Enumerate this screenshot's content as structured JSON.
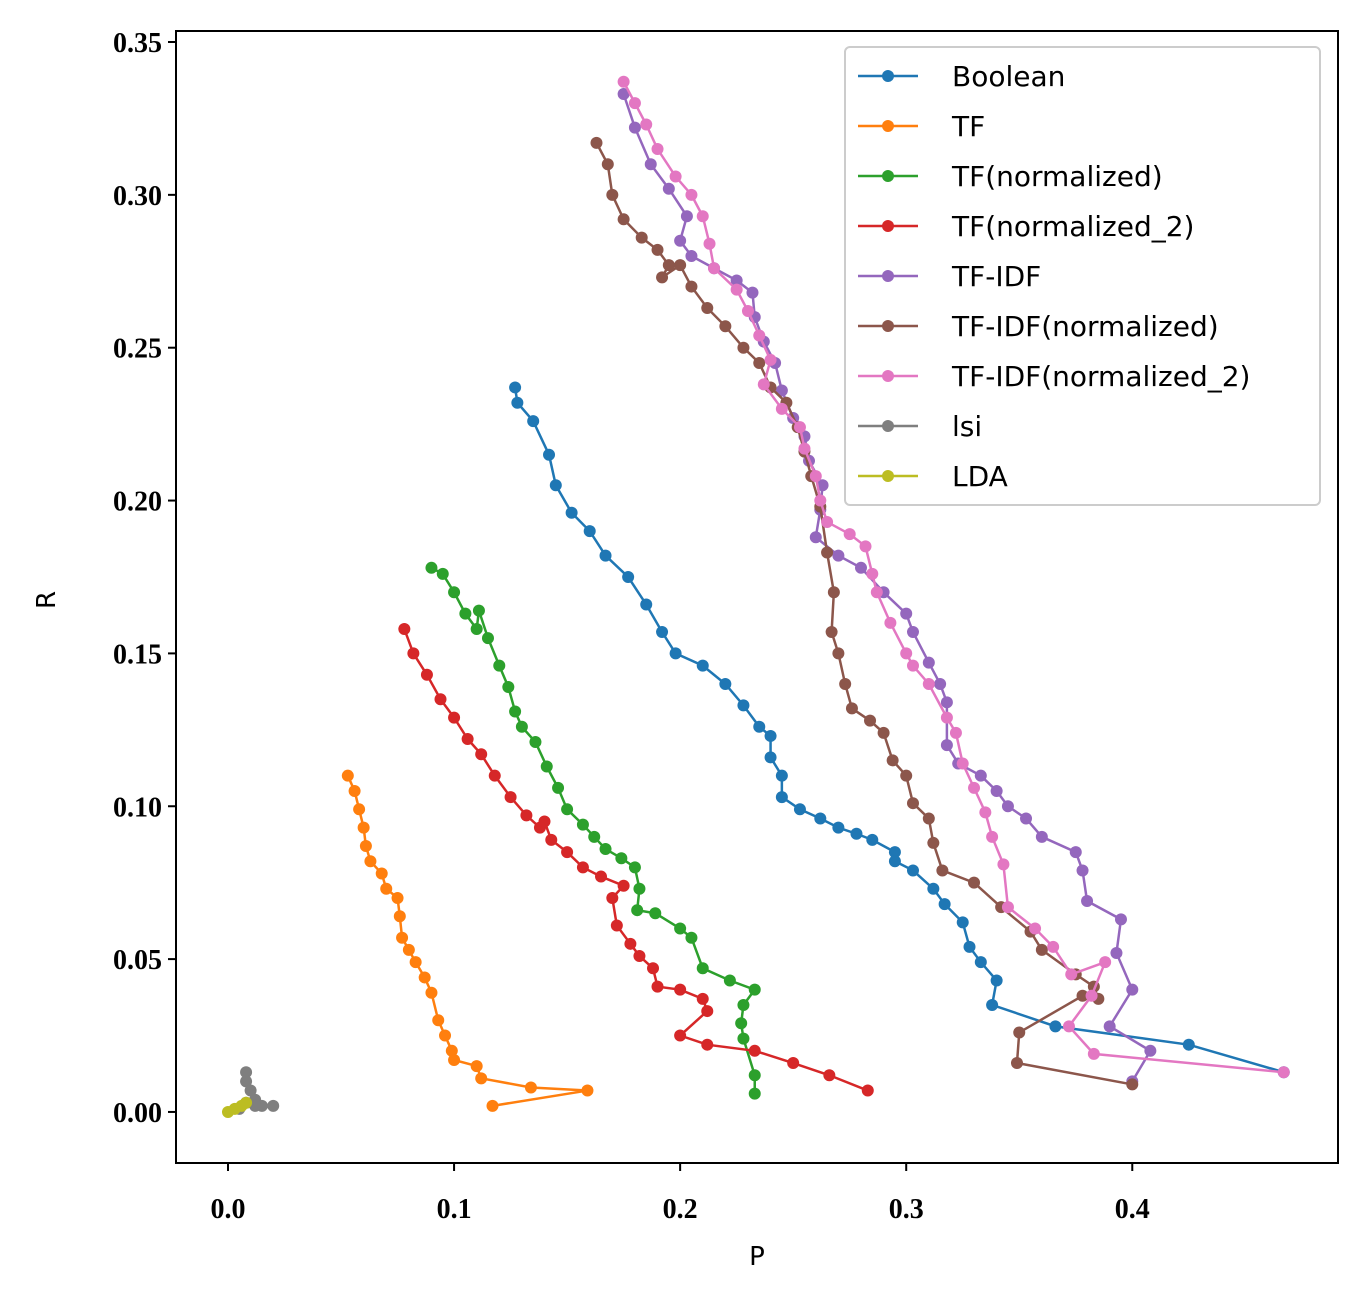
{
  "chart_data": {
    "type": "line",
    "xlabel": "P",
    "ylabel": "R",
    "xlim": [
      -0.023,
      0.491
    ],
    "ylim": [
      -0.0167,
      0.3536
    ],
    "xticks": [
      {
        "value": 0,
        "label": "0.0"
      },
      0.1,
      0.2,
      0.3,
      0.4
    ],
    "yticks": [
      {
        "value": 0,
        "label": "0.00"
      },
      0.05,
      {
        "value": 0.1,
        "label": "0.10"
      },
      0.15,
      {
        "value": 0.2,
        "label": "0.20"
      },
      0.25,
      {
        "value": 0.3,
        "label": "0.30"
      },
      0.35
    ],
    "legend": "upper right",
    "series": [
      {
        "name": "Boolean",
        "color": "#1f77b4",
        "x": [
          0.127,
          0.128,
          0.135,
          0.142,
          0.145,
          0.152,
          0.16,
          0.167,
          0.177,
          0.185,
          0.192,
          0.198,
          0.21,
          0.22,
          0.228,
          0.235,
          0.24,
          0.24,
          0.245,
          0.245,
          0.253,
          0.262,
          0.27,
          0.278,
          0.285,
          0.295,
          0.295,
          0.303,
          0.312,
          0.317,
          0.325,
          0.328,
          0.333,
          0.34,
          0.338,
          0.366,
          0.425,
          0.467
        ],
        "values": [
          0.237,
          0.232,
          0.226,
          0.215,
          0.205,
          0.196,
          0.19,
          0.182,
          0.175,
          0.166,
          0.157,
          0.15,
          0.146,
          0.14,
          0.133,
          0.126,
          0.123,
          0.116,
          0.11,
          0.103,
          0.099,
          0.096,
          0.093,
          0.091,
          0.089,
          0.085,
          0.082,
          0.079,
          0.073,
          0.068,
          0.062,
          0.054,
          0.049,
          0.043,
          0.035,
          0.028,
          0.022,
          0.013
        ]
      },
      {
        "name": "TF",
        "color": "#ff7f0e",
        "x": [
          0.053,
          0.056,
          0.058,
          0.06,
          0.061,
          0.063,
          0.068,
          0.07,
          0.075,
          0.076,
          0.077,
          0.08,
          0.083,
          0.087,
          0.09,
          0.093,
          0.096,
          0.099,
          0.1,
          0.11,
          0.112,
          0.134,
          0.159,
          0.117
        ],
        "values": [
          0.11,
          0.105,
          0.099,
          0.093,
          0.087,
          0.082,
          0.078,
          0.073,
          0.07,
          0.064,
          0.057,
          0.053,
          0.049,
          0.044,
          0.039,
          0.03,
          0.025,
          0.02,
          0.017,
          0.015,
          0.011,
          0.008,
          0.007,
          0.002
        ]
      },
      {
        "name": "TF(normalized)",
        "color": "#2ca02c",
        "x": [
          0.09,
          0.095,
          0.1,
          0.105,
          0.11,
          0.111,
          0.115,
          0.12,
          0.124,
          0.127,
          0.13,
          0.136,
          0.141,
          0.146,
          0.15,
          0.157,
          0.162,
          0.167,
          0.174,
          0.18,
          0.182,
          0.181,
          0.189,
          0.2,
          0.205,
          0.21,
          0.222,
          0.233,
          0.228,
          0.227,
          0.228,
          0.233,
          0.233
        ],
        "values": [
          0.178,
          0.176,
          0.17,
          0.163,
          0.158,
          0.164,
          0.155,
          0.146,
          0.139,
          0.131,
          0.126,
          0.121,
          0.113,
          0.106,
          0.099,
          0.094,
          0.09,
          0.086,
          0.083,
          0.08,
          0.073,
          0.066,
          0.065,
          0.06,
          0.057,
          0.047,
          0.043,
          0.04,
          0.035,
          0.029,
          0.024,
          0.012,
          0.006
        ]
      },
      {
        "name": "TF(normalized_2)",
        "color": "#d62728",
        "x": [
          0.078,
          0.082,
          0.088,
          0.094,
          0.1,
          0.106,
          0.112,
          0.118,
          0.125,
          0.132,
          0.138,
          0.14,
          0.143,
          0.15,
          0.157,
          0.165,
          0.175,
          0.17,
          0.172,
          0.178,
          0.182,
          0.188,
          0.19,
          0.2,
          0.21,
          0.212,
          0.2,
          0.212,
          0.233,
          0.25,
          0.266,
          0.283
        ],
        "values": [
          0.158,
          0.15,
          0.143,
          0.135,
          0.129,
          0.122,
          0.117,
          0.11,
          0.103,
          0.097,
          0.093,
          0.095,
          0.089,
          0.085,
          0.08,
          0.077,
          0.074,
          0.07,
          0.061,
          0.055,
          0.051,
          0.047,
          0.041,
          0.04,
          0.037,
          0.033,
          0.025,
          0.022,
          0.02,
          0.016,
          0.012,
          0.007
        ]
      },
      {
        "name": "TF-IDF",
        "color": "#9467bd",
        "x": [
          0.175,
          0.18,
          0.187,
          0.195,
          0.203,
          0.2,
          0.205,
          0.215,
          0.225,
          0.232,
          0.233,
          0.237,
          0.242,
          0.245,
          0.25,
          0.255,
          0.257,
          0.263,
          0.262,
          0.26,
          0.27,
          0.28,
          0.29,
          0.3,
          0.303,
          0.31,
          0.315,
          0.318,
          0.318,
          0.323,
          0.333,
          0.34,
          0.345,
          0.353,
          0.36,
          0.375,
          0.378,
          0.38,
          0.395,
          0.393,
          0.4,
          0.39,
          0.408,
          0.4
        ],
        "values": [
          0.333,
          0.322,
          0.31,
          0.302,
          0.293,
          0.285,
          0.28,
          0.276,
          0.272,
          0.268,
          0.26,
          0.252,
          0.245,
          0.236,
          0.227,
          0.221,
          0.213,
          0.205,
          0.197,
          0.188,
          0.182,
          0.178,
          0.17,
          0.163,
          0.157,
          0.147,
          0.14,
          0.134,
          0.12,
          0.114,
          0.11,
          0.105,
          0.1,
          0.096,
          0.09,
          0.085,
          0.079,
          0.069,
          0.063,
          0.052,
          0.04,
          0.028,
          0.02,
          0.01
        ]
      },
      {
        "name": "TF-IDF(normalized)",
        "color": "#8c564b",
        "x": [
          0.163,
          0.168,
          0.17,
          0.175,
          0.183,
          0.19,
          0.195,
          0.192,
          0.2,
          0.205,
          0.212,
          0.22,
          0.228,
          0.235,
          0.24,
          0.247,
          0.252,
          0.255,
          0.258,
          0.262,
          0.265,
          0.268,
          0.267,
          0.27,
          0.273,
          0.276,
          0.284,
          0.29,
          0.294,
          0.3,
          0.303,
          0.31,
          0.312,
          0.316,
          0.33,
          0.342,
          0.355,
          0.36,
          0.375,
          0.383,
          0.385,
          0.378,
          0.35,
          0.349,
          0.4
        ],
        "values": [
          0.317,
          0.31,
          0.3,
          0.292,
          0.286,
          0.282,
          0.277,
          0.273,
          0.277,
          0.27,
          0.263,
          0.257,
          0.25,
          0.245,
          0.237,
          0.232,
          0.224,
          0.216,
          0.208,
          0.198,
          0.183,
          0.17,
          0.157,
          0.15,
          0.14,
          0.132,
          0.128,
          0.124,
          0.115,
          0.11,
          0.101,
          0.096,
          0.088,
          0.079,
          0.075,
          0.067,
          0.059,
          0.053,
          0.045,
          0.041,
          0.037,
          0.038,
          0.026,
          0.016,
          0.009
        ]
      },
      {
        "name": "TF-IDF(normalized_2)",
        "color": "#e377c2",
        "x": [
          0.175,
          0.18,
          0.185,
          0.19,
          0.198,
          0.205,
          0.21,
          0.213,
          0.215,
          0.225,
          0.23,
          0.235,
          0.24,
          0.237,
          0.245,
          0.253,
          0.255,
          0.26,
          0.262,
          0.265,
          0.275,
          0.282,
          0.285,
          0.287,
          0.293,
          0.3,
          0.303,
          0.31,
          0.318,
          0.322,
          0.325,
          0.33,
          0.335,
          0.338,
          0.343,
          0.345,
          0.357,
          0.365,
          0.373,
          0.388,
          0.382,
          0.372,
          0.383,
          0.467
        ],
        "values": [
          0.337,
          0.33,
          0.323,
          0.315,
          0.306,
          0.3,
          0.293,
          0.284,
          0.276,
          0.269,
          0.262,
          0.254,
          0.246,
          0.238,
          0.23,
          0.224,
          0.217,
          0.208,
          0.2,
          0.193,
          0.189,
          0.185,
          0.176,
          0.17,
          0.16,
          0.15,
          0.146,
          0.14,
          0.129,
          0.124,
          0.114,
          0.106,
          0.098,
          0.09,
          0.081,
          0.067,
          0.06,
          0.054,
          0.045,
          0.049,
          0.038,
          0.028,
          0.019,
          0.013
        ]
      },
      {
        "name": "lsi",
        "color": "#7f7f7f",
        "x": [
          0.008,
          0.008,
          0.01,
          0.012,
          0.015,
          0.02,
          0.012,
          0.008,
          0.005
        ],
        "values": [
          0.013,
          0.01,
          0.007,
          0.004,
          0.002,
          0.002,
          0.002,
          0.003,
          0.001
        ]
      },
      {
        "name": "LDA",
        "color": "#bcbd22",
        "x": [
          0.0,
          0.003,
          0.006,
          0.008
        ],
        "values": [
          0.0,
          0.001,
          0.002,
          0.003
        ]
      }
    ]
  }
}
